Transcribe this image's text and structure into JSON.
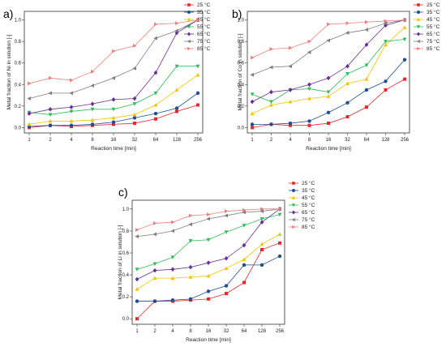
{
  "chart_data": [
    {
      "panel_label": "a)",
      "type": "line",
      "xlabel": "Reaction time [min]",
      "ylabel": "Metal fraction of Ni in solution [-]",
      "x": [
        1,
        2,
        4,
        8,
        16,
        32,
        64,
        128,
        256
      ],
      "x_tick_labels": [
        "1",
        "2",
        "4",
        "8",
        "16",
        "32",
        "64",
        "128",
        "256"
      ],
      "x_scale": "log2",
      "ylim": [
        -0.05,
        1.08
      ],
      "y_ticks": [
        "0.0",
        "0.2",
        "0.4",
        "0.6",
        "0.8",
        "1.0"
      ],
      "legend_position": "top-right",
      "series": [
        {
          "name": "25 °C",
          "color": "#e8262b",
          "marker": "square",
          "values": [
            0.0,
            0.02,
            0.01,
            0.02,
            0.03,
            0.04,
            0.08,
            0.15,
            0.21
          ]
        },
        {
          "name": "35 °C",
          "color": "#1f4e96",
          "marker": "circle",
          "values": [
            0.01,
            0.02,
            0.02,
            0.03,
            0.05,
            0.09,
            0.13,
            0.18,
            0.32
          ]
        },
        {
          "name": "45 °C",
          "color": "#f2c400",
          "marker": "triangle-up",
          "values": [
            0.03,
            0.06,
            0.06,
            0.07,
            0.09,
            0.12,
            0.21,
            0.35,
            0.49
          ]
        },
        {
          "name": "55 °C",
          "color": "#2fbf59",
          "marker": "triangle-down",
          "values": [
            0.14,
            0.12,
            0.15,
            0.17,
            0.17,
            0.22,
            0.32,
            0.57,
            0.57
          ]
        },
        {
          "name": "65 °C",
          "color": "#6a2f96",
          "marker": "diamond",
          "values": [
            0.13,
            0.17,
            0.19,
            0.22,
            0.26,
            0.27,
            0.51,
            0.88,
            1.0
          ]
        },
        {
          "name": "75 °C",
          "color": "#7f7f7f",
          "marker": "triangle-left",
          "values": [
            0.27,
            0.32,
            0.32,
            0.39,
            0.46,
            0.55,
            0.83,
            0.9,
            1.0
          ]
        },
        {
          "name": "85 °C",
          "color": "#f08080",
          "marker": "triangle-right",
          "values": [
            0.41,
            0.46,
            0.44,
            0.52,
            0.71,
            0.76,
            0.96,
            0.97,
            1.0
          ]
        }
      ]
    },
    {
      "panel_label": "b)",
      "type": "line",
      "xlabel": "Reaction time [min]",
      "ylabel": "Metal fraction of Co in solution [-]",
      "x": [
        1,
        2,
        4,
        8,
        16,
        32,
        64,
        128,
        256
      ],
      "x_tick_labels": [
        "1",
        "2",
        "4",
        "8",
        "16",
        "32",
        "64",
        "128",
        "256"
      ],
      "x_scale": "log2",
      "ylim": [
        -0.05,
        1.08
      ],
      "y_ticks": [
        "0.0",
        "0.2",
        "0.4",
        "0.6",
        "0.8",
        "1.0"
      ],
      "legend_position": "top-right",
      "series": [
        {
          "name": "25 °C",
          "color": "#e8262b",
          "marker": "square",
          "values": [
            0.0,
            0.03,
            0.02,
            0.02,
            0.04,
            0.1,
            0.19,
            0.35,
            0.45
          ]
        },
        {
          "name": "35 °C",
          "color": "#1f4e96",
          "marker": "circle",
          "values": [
            0.03,
            0.03,
            0.04,
            0.06,
            0.14,
            0.23,
            0.35,
            0.43,
            0.63
          ]
        },
        {
          "name": "45 °C",
          "color": "#f2c400",
          "marker": "triangle-up",
          "values": [
            0.13,
            0.21,
            0.24,
            0.27,
            0.29,
            0.41,
            0.45,
            0.77,
            0.93
          ]
        },
        {
          "name": "55 °C",
          "color": "#2fbf59",
          "marker": "triangle-down",
          "values": [
            0.31,
            0.24,
            0.35,
            0.36,
            0.33,
            0.5,
            0.58,
            0.8,
            0.82
          ]
        },
        {
          "name": "65 °C",
          "color": "#6a2f96",
          "marker": "diamond",
          "values": [
            0.24,
            0.33,
            0.35,
            0.4,
            0.46,
            0.57,
            0.77,
            0.95,
            1.0
          ]
        },
        {
          "name": "75 °C",
          "color": "#7f7f7f",
          "marker": "triangle-left",
          "values": [
            0.49,
            0.56,
            0.57,
            0.7,
            0.81,
            0.88,
            0.91,
            0.97,
            1.0
          ]
        },
        {
          "name": "85 °C",
          "color": "#f08080",
          "marker": "triangle-right",
          "values": [
            0.65,
            0.73,
            0.74,
            0.8,
            0.96,
            0.97,
            0.98,
            0.99,
            1.0
          ]
        }
      ]
    },
    {
      "panel_label": "c)",
      "type": "line",
      "xlabel": "Reaction time [min]",
      "ylabel": "Metal fraction of Li in solution [-]",
      "x": [
        1,
        2,
        4,
        8,
        16,
        32,
        64,
        128,
        256
      ],
      "x_tick_labels": [
        "1",
        "2",
        "4",
        "8",
        "16",
        "32",
        "64",
        "128",
        "256"
      ],
      "x_scale": "log2",
      "ylim": [
        -0.05,
        1.08
      ],
      "y_ticks": [
        "0.0",
        "0.2",
        "0.4",
        "0.6",
        "0.8",
        "1.0"
      ],
      "legend_position": "top-right",
      "series": [
        {
          "name": "25 °C",
          "color": "#e8262b",
          "marker": "square",
          "values": [
            0.0,
            0.16,
            0.16,
            0.17,
            0.18,
            0.23,
            0.33,
            0.63,
            0.69
          ]
        },
        {
          "name": "35 °C",
          "color": "#1f4e96",
          "marker": "circle",
          "values": [
            0.16,
            0.16,
            0.17,
            0.18,
            0.25,
            0.3,
            0.49,
            0.49,
            0.57
          ]
        },
        {
          "name": "45 °C",
          "color": "#f2c400",
          "marker": "triangle-up",
          "values": [
            0.27,
            0.37,
            0.37,
            0.38,
            0.39,
            0.46,
            0.54,
            0.68,
            0.77
          ]
        },
        {
          "name": "55 °C",
          "color": "#2fbf59",
          "marker": "triangle-down",
          "values": [
            0.45,
            0.5,
            0.56,
            0.71,
            0.72,
            0.79,
            0.85,
            0.91,
            0.95
          ]
        },
        {
          "name": "65 °C",
          "color": "#6a2f96",
          "marker": "diamond",
          "values": [
            0.36,
            0.44,
            0.45,
            0.47,
            0.51,
            0.55,
            0.67,
            0.88,
            1.0
          ]
        },
        {
          "name": "75 °C",
          "color": "#7f7f7f",
          "marker": "triangle-left",
          "values": [
            0.75,
            0.77,
            0.8,
            0.86,
            0.91,
            0.94,
            0.97,
            0.98,
            1.0
          ]
        },
        {
          "name": "85 °C",
          "color": "#f08080",
          "marker": "triangle-right",
          "values": [
            0.81,
            0.87,
            0.88,
            0.94,
            0.95,
            0.98,
            0.99,
            1.0,
            1.0
          ]
        }
      ]
    }
  ]
}
